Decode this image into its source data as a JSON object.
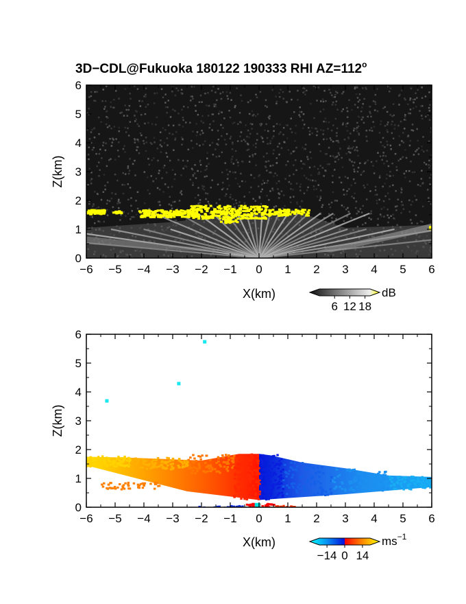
{
  "chart_data": [
    {
      "type": "heatmap",
      "title": "3D−CDL@Fukuoka 180122 190333 RHI AZ=112",
      "title_superscript": "o",
      "xlabel": "X(km)",
      "ylabel": "Z(km)",
      "xlim": [
        -6,
        6
      ],
      "ylim": [
        0,
        6
      ],
      "xticks": [
        -6,
        -5,
        -4,
        -3,
        -2,
        -1,
        0,
        1,
        2,
        3,
        4,
        5,
        6
      ],
      "yticks": [
        0,
        1,
        2,
        3,
        4,
        5,
        6
      ],
      "grid": false,
      "field": "signal intensity",
      "background": "dark grey noise",
      "colorbar": {
        "unit": "dB",
        "ticks": [
          6,
          12,
          18
        ],
        "range": [
          0,
          20
        ],
        "colors": [
          "#111111",
          "#888888",
          "#eeeeee",
          "#ffff00"
        ]
      },
      "features": [
        {
          "label": "bright returns near cloud base",
          "z_km": [
            1.4,
            1.85
          ],
          "x_km": [
            -6,
            1.8
          ],
          "color": "#ffff00"
        }
      ]
    },
    {
      "type": "heatmap",
      "title": "",
      "xlabel": "X(km)",
      "ylabel": "Z(km)",
      "xlim": [
        -6,
        6
      ],
      "ylim": [
        0,
        6
      ],
      "xticks": [
        -6,
        -5,
        -4,
        -3,
        -2,
        -1,
        0,
        1,
        2,
        3,
        4,
        5,
        6
      ],
      "yticks": [
        0,
        1,
        2,
        3,
        4,
        5,
        6
      ],
      "grid": false,
      "field": "radial velocity",
      "colorbar": {
        "unit": "ms",
        "unit_superscript": "−1",
        "ticks": [
          "−14",
          "0",
          "14"
        ],
        "range": [
          -20,
          20
        ],
        "colors": [
          "#00ffff",
          "#0a8ff2",
          "#0010dc",
          "#ff0000",
          "#ff8800",
          "#ffff00"
        ]
      },
      "isolated_points": [
        {
          "x": -5.3,
          "z": 3.7
        },
        {
          "x": -2.8,
          "z": 4.3
        },
        {
          "x": -1.9,
          "z": 5.75
        }
      ]
    }
  ]
}
